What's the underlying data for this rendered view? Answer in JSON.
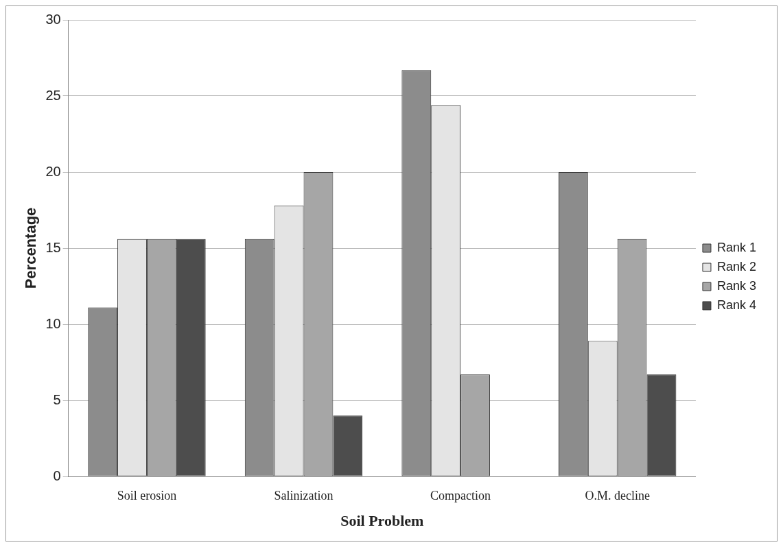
{
  "chart_data": {
    "type": "bar",
    "xlabel": "Soil Problem",
    "ylabel": "Percentage",
    "categories": [
      "Soil erosion",
      "Salinization",
      "Compaction",
      "O.M. decline"
    ],
    "series": [
      {
        "name": "Rank 1",
        "color": "#8c8c8c",
        "values": [
          11.1,
          15.6,
          26.7,
          20
        ]
      },
      {
        "name": "Rank 2",
        "color": "#e4e4e4",
        "values": [
          15.6,
          17.8,
          24.4,
          8.9
        ]
      },
      {
        "name": "Rank 3",
        "color": "#a6a6a6",
        "values": [
          15.6,
          20,
          6.7,
          15.6
        ]
      },
      {
        "name": "Rank 4",
        "color": "#4d4d4d",
        "values": [
          15.6,
          4,
          0,
          6.7
        ]
      }
    ],
    "ylim": [
      0,
      30
    ],
    "yticks": [
      0,
      5,
      10,
      15,
      20,
      25,
      30
    ],
    "grid": "y",
    "legend": "right"
  }
}
